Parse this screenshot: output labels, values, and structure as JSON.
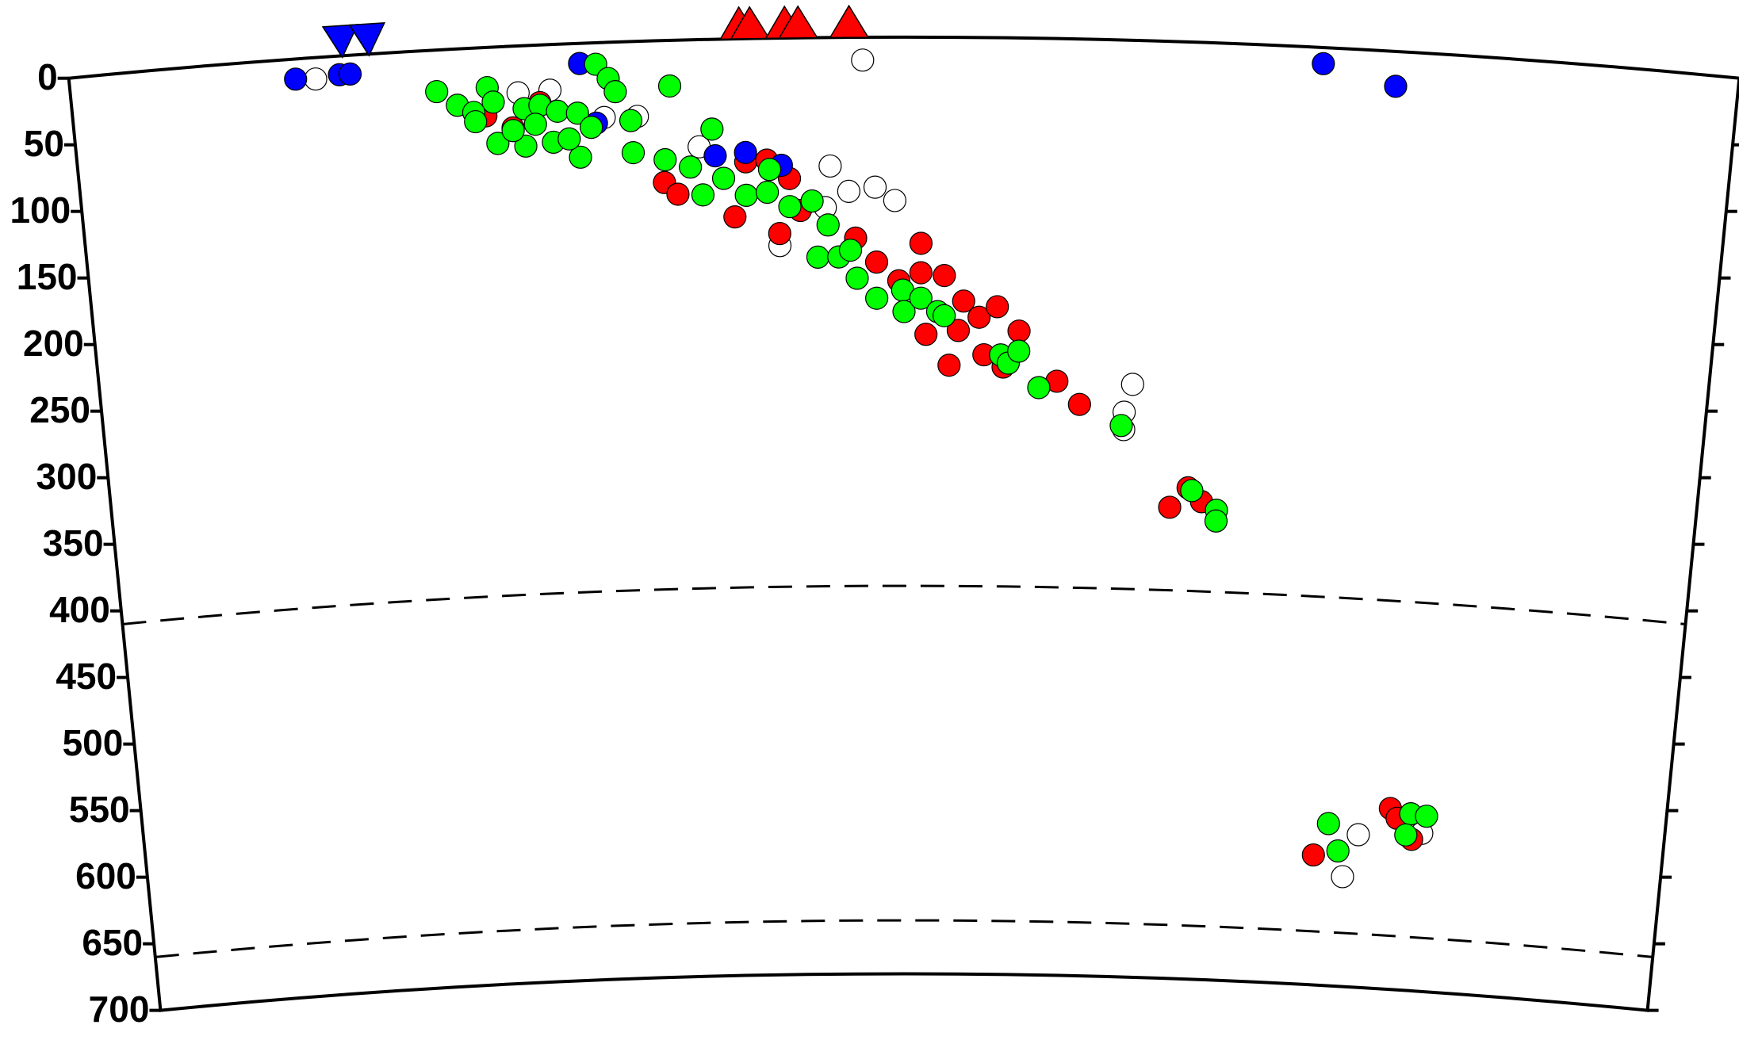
{
  "chart_data": {
    "type": "scatter",
    "xlim": [
      0,
      1250
    ],
    "ylim": [
      0,
      700
    ],
    "yticks": [
      0,
      50,
      100,
      150,
      200,
      250,
      300,
      350,
      400,
      450,
      500,
      550,
      600,
      650,
      700
    ],
    "reference_depths": [
      410,
      660
    ],
    "stations": {
      "color": "#0000ff",
      "x": [
        205,
        225
      ]
    },
    "volcanoes": {
      "color": "#ff0000",
      "x": [
        502,
        510,
        536,
        546,
        584
      ]
    },
    "series": [
      {
        "color": "#ffffff",
        "x": [
          184,
          335,
          359,
          399,
          424,
          470,
          530,
          569,
          583,
          565,
          603,
          618,
          594,
          803,
          797,
          797,
          999,
          988,
          1051
        ],
        "values": [
          16,
          35,
          34,
          56,
          56,
          80,
          155,
          96,
          115,
          127,
          112,
          122,
          17,
          257,
          278,
          291,
          586,
          618,
          582
        ]
      },
      {
        "color": "#ff0000",
        "x": [
          310,
          330,
          351,
          443,
          453,
          496,
          505,
          521,
          538,
          546,
          530,
          588,
          604,
          621,
          638,
          638,
          656,
          642,
          671,
          667,
          683,
          697,
          687,
          702,
          714,
          660,
          744,
          762,
          835,
          849,
          860,
          963,
          1024,
          1030,
          1043
        ],
        "values": [
          51,
          61,
          43,
          106,
          115,
          133,
          92,
          91,
          105,
          129,
          146,
          150,
          168,
          182,
          154,
          176,
          178,
          222,
          197,
          219,
          209,
          201,
          237,
          246,
          219,
          245,
          256,
          273,
          348,
          333,
          343,
          603,
          565,
          572,
          587
        ]
      },
      {
        "color": "#0000ff",
        "x": [
          169,
          202,
          210,
          382,
          393,
          482,
          505,
          532,
          939,
          994
        ],
        "values": [
          15,
          14,
          14,
          15,
          60,
          87,
          85,
          95,
          12,
          26
        ]
      },
      {
        "color": "#00ff00",
        "x": [
          274,
          289,
          301,
          312,
          316,
          339,
          351,
          364,
          379,
          389,
          318,
          339,
          360,
          380,
          394,
          403,
          408,
          419,
          420,
          449,
          302,
          330,
          347,
          372,
          444,
          463,
          472,
          480,
          488,
          505,
          521,
          523,
          538,
          555,
          567,
          559,
          575,
          584,
          589,
          604,
          624,
          625,
          638,
          651,
          656,
          700,
          706,
          714,
          730,
          795,
          852,
          872,
          872,
          974,
          983,
          1041,
          1054,
          1038
        ],
        "values": [
          31,
          42,
          48,
          30,
          41,
          47,
          45,
          50,
          52,
          63,
          72,
          75,
          73,
          85,
          16,
          27,
          37,
          59,
          83,
          34,
          55,
          63,
          59,
          71,
          89,
          95,
          116,
          67,
          104,
          117,
          115,
          98,
          126,
          122,
          140,
          164,
          164,
          159,
          180,
          195,
          189,
          205,
          195,
          205,
          208,
          237,
          243,
          234,
          261,
          288,
          335,
          349,
          357,
          579,
          599,
          568,
          569,
          584
        ]
      }
    ]
  }
}
